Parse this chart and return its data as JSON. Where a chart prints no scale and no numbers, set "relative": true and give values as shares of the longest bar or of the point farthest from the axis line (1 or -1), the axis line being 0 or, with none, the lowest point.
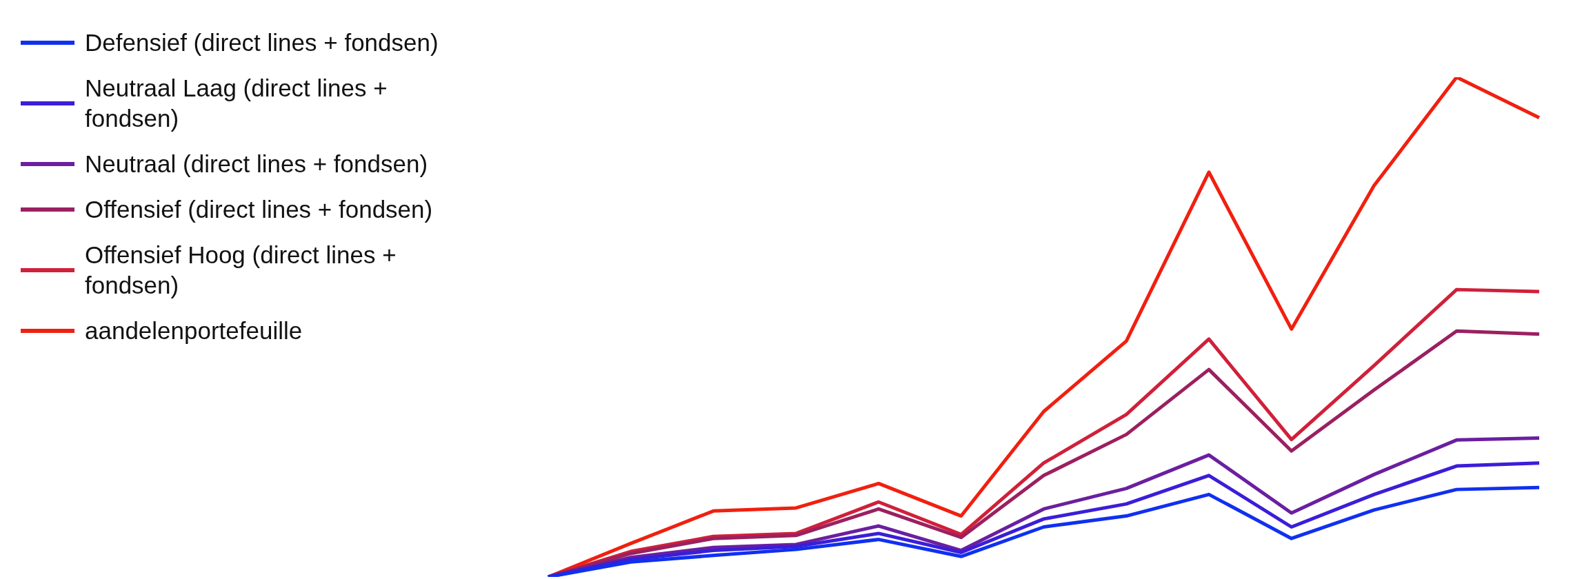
{
  "chart_data": {
    "type": "line",
    "relative": true,
    "legend": "top left",
    "marker": "none",
    "categories": [
      null,
      null,
      null,
      null,
      null,
      null,
      null,
      null,
      null,
      null,
      null,
      null,
      null
    ],
    "series": [
      {
        "name": "Defensief (direct lines + fondsen)",
        "color": "#1030f0",
        "values": [
          0,
          0.03,
          0.043,
          0.055,
          0.075,
          0.041,
          0.1,
          0.122,
          0.165,
          0.077,
          0.134,
          0.175,
          0.179
        ]
      },
      {
        "name": "Neutraal Laag (direct lines + fondsen)",
        "color": "#3a1ed8",
        "values": [
          0,
          0.035,
          0.053,
          0.061,
          0.087,
          0.049,
          0.116,
          0.146,
          0.203,
          0.1,
          0.165,
          0.222,
          0.228
        ]
      },
      {
        "name": "Neutraal (direct lines + fondsen)",
        "color": "#6a1fa0",
        "values": [
          0,
          0.039,
          0.059,
          0.065,
          0.102,
          0.053,
          0.136,
          0.177,
          0.244,
          0.128,
          0.205,
          0.274,
          0.278
        ]
      },
      {
        "name": "Offensief (direct lines + fondsen)",
        "color": "#9b2060",
        "values": [
          0,
          0.047,
          0.077,
          0.083,
          0.136,
          0.079,
          0.203,
          0.285,
          0.415,
          0.252,
          0.374,
          0.492,
          0.486
        ]
      },
      {
        "name": "Offensief Hoog (direct lines + fondsen)",
        "color": "#d0203a",
        "values": [
          0,
          0.051,
          0.081,
          0.087,
          0.15,
          0.085,
          0.228,
          0.325,
          0.476,
          0.275,
          0.423,
          0.575,
          0.571
        ]
      },
      {
        "name": "aandelenportefeuille",
        "color": "#f02010",
        "values": [
          0,
          0.067,
          0.132,
          0.138,
          0.187,
          0.122,
          0.331,
          0.472,
          0.81,
          0.496,
          0.783,
          1,
          0.919
        ]
      }
    ]
  }
}
